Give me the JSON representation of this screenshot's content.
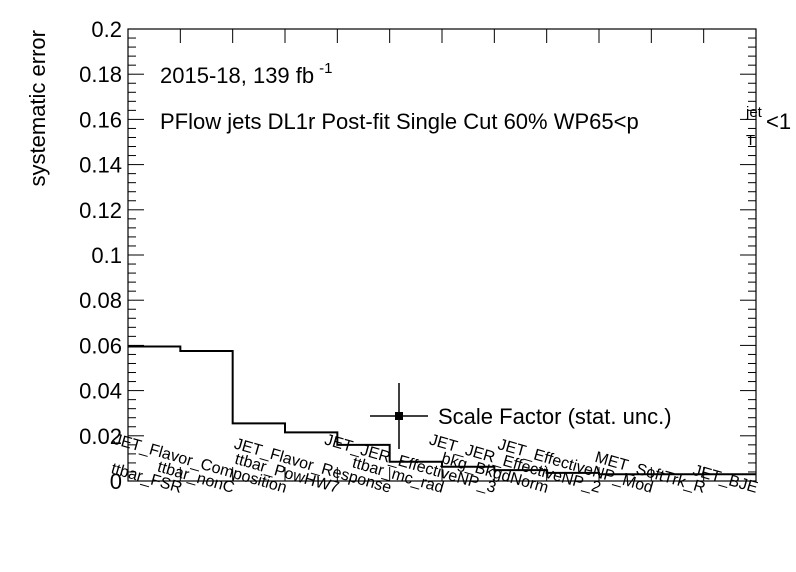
{
  "chart_data": {
    "type": "step",
    "ylabel": "systematic error",
    "ylim": [
      0,
      0.2
    ],
    "yticks": [
      "0",
      "0.02",
      "0.04",
      "0.06",
      "0.08",
      "0.1",
      "0.12",
      "0.14",
      "0.16",
      "0.18",
      "0.2"
    ],
    "annotations": {
      "lumi_text": "2015-18, 139 fb",
      "lumi_exp": "-1",
      "selection_text": "PFlow jets DL1r Post-fit Single Cut 60% WP65<p",
      "sub_T": "T",
      "sup_jet": "jet",
      "selection_tail": "<1"
    },
    "legend": {
      "label": "Scale Factor (stat. unc.)",
      "position": "center-right"
    },
    "categories": [
      "ttbar_FSR",
      "ttbar_nonC",
      "JET_Flavor_Composition",
      "ttbar_PowHW7",
      "JET_Flavor_Response",
      "ttbar_mc_rad",
      "JET_JER_EffectiveNP_3",
      "bkg_BkgdNorm",
      "JET_JER_EffectiveNP_2",
      "JET_EffectiveNP_Mod",
      "MET_SoftTrk_R",
      "JET_BJE"
    ],
    "values": [
      0.0595,
      0.0575,
      0.0255,
      0.0215,
      0.016,
      0.0085,
      0.0063,
      0.0048,
      0.0036,
      0.003,
      0.003,
      0.003
    ]
  }
}
